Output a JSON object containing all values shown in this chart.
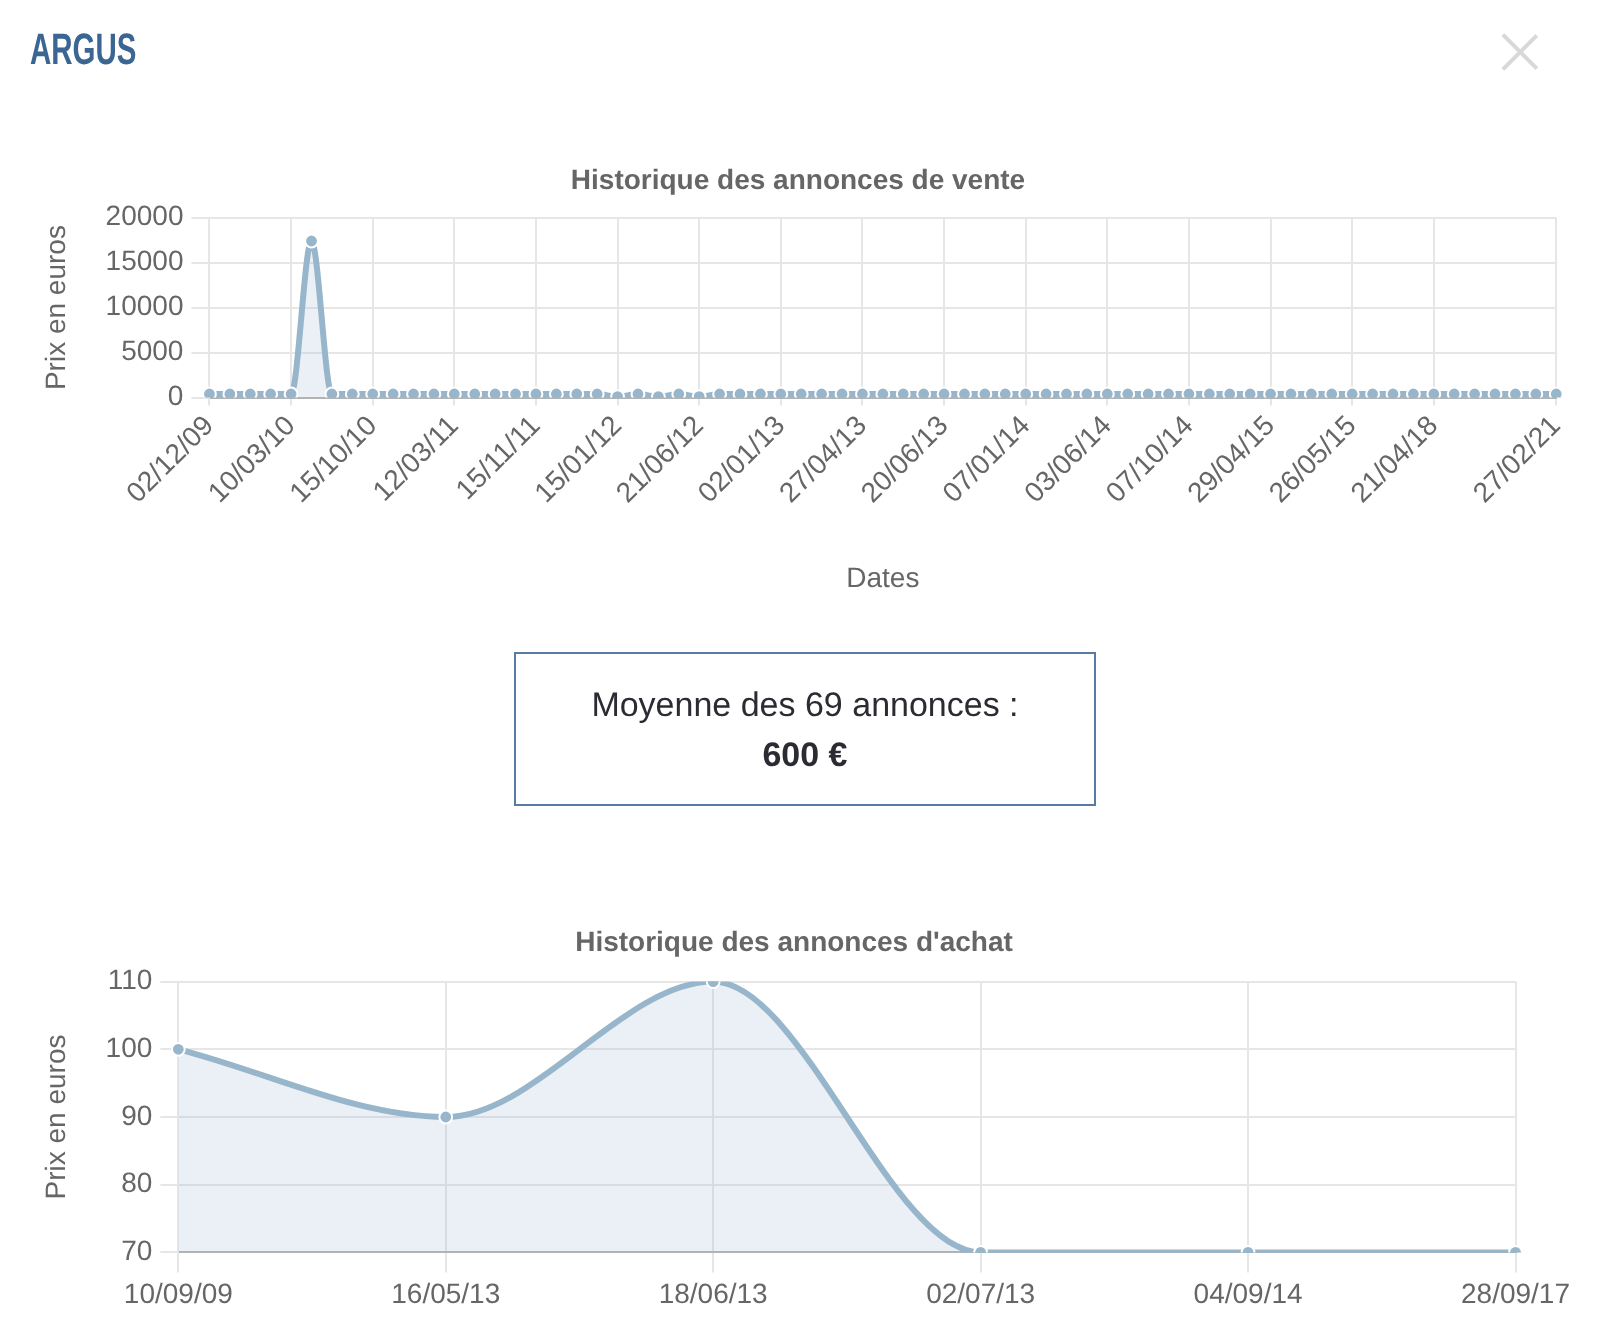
{
  "chart_data": [
    {
      "type": "other",
      "title": "ARGUS"
    },
    {
      "type": "area",
      "title": "Historique des annonces de vente",
      "xlabel": "Dates",
      "ylabel": "Prix en euros",
      "categories": [
        "02/12/09",
        null,
        null,
        null,
        "10/03/10",
        null,
        null,
        null,
        "15/10/10",
        null,
        null,
        null,
        "12/03/11",
        null,
        null,
        null,
        "15/11/11",
        null,
        null,
        null,
        "15/01/12",
        null,
        null,
        null,
        "21/06/12",
        null,
        null,
        null,
        "02/01/13",
        null,
        null,
        null,
        "27/04/13",
        null,
        null,
        null,
        "20/06/13",
        null,
        null,
        null,
        "07/01/14",
        null,
        null,
        null,
        "03/06/14",
        null,
        null,
        null,
        "07/10/14",
        null,
        null,
        null,
        "29/04/15",
        null,
        null,
        null,
        "26/05/15",
        null,
        null,
        null,
        "21/04/18",
        null,
        null,
        null,
        null,
        null,
        "27/02/21"
      ],
      "series": [
        {
          "color": "#98b6cb",
          "values": [
            400,
            400,
            400,
            400,
            400,
            17400,
            400,
            400,
            400,
            400,
            400,
            400,
            400,
            400,
            400,
            400,
            400,
            400,
            400,
            400,
            100,
            400,
            100,
            400,
            100,
            400,
            400,
            400,
            400,
            400,
            400,
            400,
            400,
            400,
            400,
            400,
            400,
            400,
            400,
            400,
            400,
            400,
            400,
            400,
            400,
            400,
            400,
            400,
            400,
            400,
            400,
            400,
            400,
            400,
            400,
            400,
            400,
            400,
            400,
            400,
            400,
            400,
            400,
            400,
            400,
            400,
            400
          ]
        }
      ],
      "ylim": [
        0,
        20000
      ],
      "yticks": [
        0,
        5000,
        10000,
        15000,
        20000
      ],
      "grid": true,
      "marker": "circle"
    },
    {
      "type": "other",
      "annotations": [
        "Moyenne des 69 annonces :",
        "600 €"
      ]
    },
    {
      "type": "area",
      "title": "Historique des annonces d'achat",
      "ylabel": "Prix en euros",
      "categories": [
        "10/09/09",
        "16/05/13",
        "18/06/13",
        "02/07/13",
        "04/09/14",
        "28/09/17"
      ],
      "series": [
        {
          "color": "#98b6cb",
          "values": [
            100,
            90,
            110,
            70,
            70,
            70
          ]
        }
      ],
      "ylim": [
        70,
        110
      ],
      "yticks": [
        70,
        80,
        90,
        100,
        110
      ],
      "grid": true,
      "marker": "circle"
    }
  ]
}
